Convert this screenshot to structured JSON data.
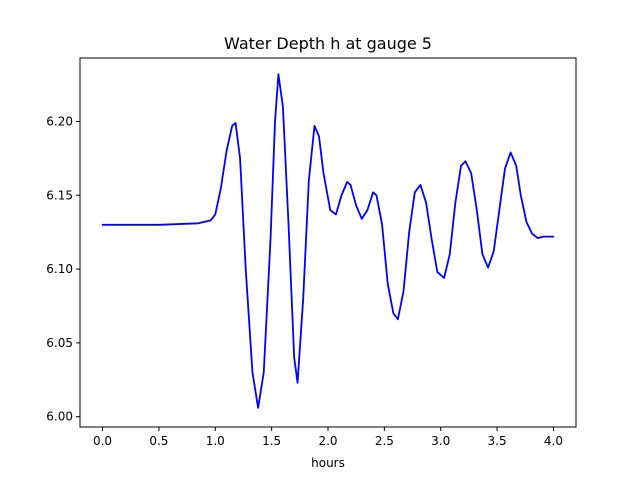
{
  "chart_data": {
    "type": "line",
    "title": "Water Depth h at gauge 5",
    "xlabel": "hours",
    "ylabel": "",
    "xlim": [
      -0.2,
      4.2
    ],
    "ylim": [
      5.993,
      6.243
    ],
    "xticks": [
      0.0,
      0.5,
      1.0,
      1.5,
      2.0,
      2.5,
      3.0,
      3.5,
      4.0
    ],
    "xtick_labels": [
      "0.0",
      "0.5",
      "1.0",
      "1.5",
      "2.0",
      "2.5",
      "3.0",
      "3.5",
      "4.0"
    ],
    "yticks": [
      6.0,
      6.05,
      6.1,
      6.15,
      6.2
    ],
    "ytick_labels": [
      "6.00",
      "6.05",
      "6.10",
      "6.15",
      "6.20"
    ],
    "grid": false,
    "series": [
      {
        "color": "#0000ff",
        "x": [
          0.0,
          0.5,
          0.85,
          0.96,
          1.0,
          1.05,
          1.1,
          1.15,
          1.18,
          1.22,
          1.27,
          1.33,
          1.38,
          1.43,
          1.49,
          1.53,
          1.56,
          1.6,
          1.65,
          1.7,
          1.73,
          1.78,
          1.83,
          1.88,
          1.92,
          1.96,
          2.02,
          2.07,
          2.12,
          2.17,
          2.2,
          2.25,
          2.3,
          2.35,
          2.4,
          2.43,
          2.48,
          2.53,
          2.58,
          2.62,
          2.67,
          2.72,
          2.77,
          2.82,
          2.87,
          2.92,
          2.97,
          3.03,
          3.08,
          3.13,
          3.18,
          3.22,
          3.27,
          3.32,
          3.37,
          3.42,
          3.47,
          3.52,
          3.57,
          3.62,
          3.67,
          3.71,
          3.76,
          3.81,
          3.86,
          3.91,
          3.95,
          4.0
        ],
        "y": [
          6.13,
          6.13,
          6.131,
          6.133,
          6.137,
          6.155,
          6.18,
          6.197,
          6.199,
          6.175,
          6.1,
          6.03,
          6.006,
          6.03,
          6.12,
          6.2,
          6.232,
          6.21,
          6.13,
          6.04,
          6.023,
          6.08,
          6.16,
          6.197,
          6.19,
          6.165,
          6.14,
          6.137,
          6.15,
          6.159,
          6.157,
          6.143,
          6.134,
          6.14,
          6.152,
          6.15,
          6.13,
          6.09,
          6.07,
          6.066,
          6.085,
          6.125,
          6.152,
          6.157,
          6.145,
          6.12,
          6.098,
          6.094,
          6.11,
          6.145,
          6.17,
          6.173,
          6.165,
          6.14,
          6.11,
          6.101,
          6.112,
          6.14,
          6.168,
          6.179,
          6.17,
          6.15,
          6.132,
          6.124,
          6.121,
          6.122,
          6.122,
          6.122
        ]
      }
    ]
  }
}
